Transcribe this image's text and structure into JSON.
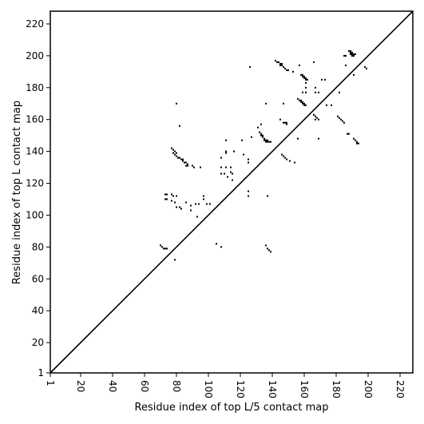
{
  "chart_data": {
    "type": "scatter",
    "title": "",
    "xlabel": "Residue index of top L/5 contact map",
    "ylabel": "Residue index of top L contact map",
    "xlim": [
      1,
      228
    ],
    "ylim": [
      1,
      228
    ],
    "xticks": [
      1,
      20,
      40,
      60,
      80,
      100,
      120,
      140,
      160,
      180,
      200,
      220
    ],
    "yticks": [
      1,
      20,
      40,
      60,
      80,
      100,
      120,
      140,
      160,
      180,
      200,
      220
    ],
    "grid": false,
    "legend": "none",
    "diagonal": {
      "from": [
        1,
        1
      ],
      "to": [
        228,
        228
      ]
    },
    "marker_color": "#000000",
    "series": [
      {
        "points": [
          [
            70,
            81
          ],
          [
            71,
            80
          ],
          [
            72,
            79
          ],
          [
            73,
            79
          ],
          [
            74,
            79
          ],
          [
            79,
            72
          ],
          [
            73,
            113
          ],
          [
            74,
            113
          ],
          [
            73,
            110
          ],
          [
            74,
            110
          ],
          [
            77,
            113
          ],
          [
            78,
            112
          ],
          [
            80,
            112
          ],
          [
            77,
            109
          ],
          [
            79,
            108
          ],
          [
            80,
            105
          ],
          [
            82,
            105
          ],
          [
            83,
            104
          ],
          [
            86,
            108
          ],
          [
            89,
            106
          ],
          [
            89,
            103
          ],
          [
            92,
            107
          ],
          [
            94,
            107
          ],
          [
            93,
            99
          ],
          [
            97,
            112
          ],
          [
            97,
            110
          ],
          [
            99,
            107
          ],
          [
            101,
            107
          ],
          [
            77,
            142
          ],
          [
            78,
            141
          ],
          [
            78,
            139
          ],
          [
            79,
            140
          ],
          [
            79,
            138
          ],
          [
            80,
            139
          ],
          [
            80,
            137
          ],
          [
            81,
            136
          ],
          [
            82,
            136
          ],
          [
            83,
            135
          ],
          [
            84,
            135
          ],
          [
            84,
            134
          ],
          [
            85,
            133
          ],
          [
            86,
            133
          ],
          [
            86,
            131
          ],
          [
            87,
            132
          ],
          [
            87,
            131
          ],
          [
            90,
            131
          ],
          [
            91,
            130
          ],
          [
            95,
            130
          ],
          [
            80,
            170
          ],
          [
            82,
            156
          ],
          [
            105,
            82
          ],
          [
            108,
            80
          ],
          [
            108,
            136
          ],
          [
            108,
            130
          ],
          [
            108,
            126
          ],
          [
            111,
            147
          ],
          [
            111,
            140
          ],
          [
            111,
            139
          ],
          [
            111,
            130
          ],
          [
            110,
            126
          ],
          [
            112,
            124
          ],
          [
            114,
            130
          ],
          [
            114,
            127
          ],
          [
            115,
            126
          ],
          [
            115,
            122
          ],
          [
            116,
            140
          ],
          [
            121,
            147
          ],
          [
            122,
            138
          ],
          [
            125,
            135
          ],
          [
            125,
            133
          ],
          [
            125,
            115
          ],
          [
            125,
            112
          ],
          [
            126,
            193
          ],
          [
            127,
            149
          ],
          [
            131,
            155
          ],
          [
            133,
            157
          ],
          [
            132,
            152
          ],
          [
            133,
            151
          ],
          [
            133,
            150
          ],
          [
            134,
            150
          ],
          [
            134,
            149
          ],
          [
            135,
            148
          ],
          [
            135,
            147
          ],
          [
            136,
            147
          ],
          [
            136,
            146
          ],
          [
            137,
            147
          ],
          [
            137,
            146
          ],
          [
            138,
            146
          ],
          [
            139,
            146
          ],
          [
            136,
            170
          ],
          [
            137,
            112
          ],
          [
            136,
            81
          ],
          [
            137,
            79
          ],
          [
            138,
            78
          ],
          [
            139,
            77
          ],
          [
            142,
            197
          ],
          [
            143,
            196
          ],
          [
            144,
            196
          ],
          [
            145,
            195
          ],
          [
            145,
            194
          ],
          [
            146,
            195
          ],
          [
            146,
            194
          ],
          [
            147,
            193
          ],
          [
            148,
            192
          ],
          [
            149,
            191
          ],
          [
            150,
            191
          ],
          [
            147,
            170
          ],
          [
            145,
            160
          ],
          [
            147,
            158
          ],
          [
            148,
            158
          ],
          [
            149,
            158
          ],
          [
            149,
            157
          ],
          [
            146,
            138
          ],
          [
            147,
            137
          ],
          [
            148,
            136
          ],
          [
            149,
            135
          ],
          [
            151,
            134
          ],
          [
            153,
            190
          ],
          [
            154,
            133
          ],
          [
            157,
            194
          ],
          [
            156,
            148
          ],
          [
            156,
            173
          ],
          [
            157,
            172
          ],
          [
            158,
            172
          ],
          [
            158,
            171
          ],
          [
            159,
            171
          ],
          [
            159,
            170
          ],
          [
            160,
            170
          ],
          [
            160,
            169
          ],
          [
            161,
            169
          ],
          [
            158,
            188
          ],
          [
            159,
            188
          ],
          [
            159,
            187
          ],
          [
            160,
            187
          ],
          [
            160,
            186
          ],
          [
            161,
            186
          ],
          [
            161,
            185
          ],
          [
            162,
            185
          ],
          [
            161,
            183
          ],
          [
            159,
            177
          ],
          [
            161,
            180
          ],
          [
            161,
            177
          ],
          [
            166,
            196
          ],
          [
            167,
            180
          ],
          [
            167,
            177
          ],
          [
            169,
            177
          ],
          [
            166,
            163
          ],
          [
            167,
            162
          ],
          [
            167,
            160
          ],
          [
            168,
            161
          ],
          [
            169,
            160
          ],
          [
            169,
            148
          ],
          [
            171,
            185
          ],
          [
            173,
            185
          ],
          [
            174,
            169
          ],
          [
            177,
            169
          ],
          [
            181,
            162
          ],
          [
            182,
            177
          ],
          [
            182,
            161
          ],
          [
            183,
            160
          ],
          [
            184,
            159
          ],
          [
            185,
            158
          ],
          [
            185,
            200
          ],
          [
            186,
            200
          ],
          [
            186,
            194
          ],
          [
            187,
            151
          ],
          [
            188,
            151
          ],
          [
            188,
            203
          ],
          [
            189,
            203
          ],
          [
            189,
            202
          ],
          [
            189,
            201
          ],
          [
            190,
            202
          ],
          [
            190,
            201
          ],
          [
            190,
            200
          ],
          [
            191,
            200
          ],
          [
            191,
            201
          ],
          [
            192,
            201
          ],
          [
            191,
            188
          ],
          [
            191,
            148
          ],
          [
            192,
            147
          ],
          [
            193,
            146
          ],
          [
            193,
            145
          ],
          [
            194,
            145
          ],
          [
            198,
            193
          ],
          [
            199,
            192
          ]
        ]
      }
    ]
  }
}
